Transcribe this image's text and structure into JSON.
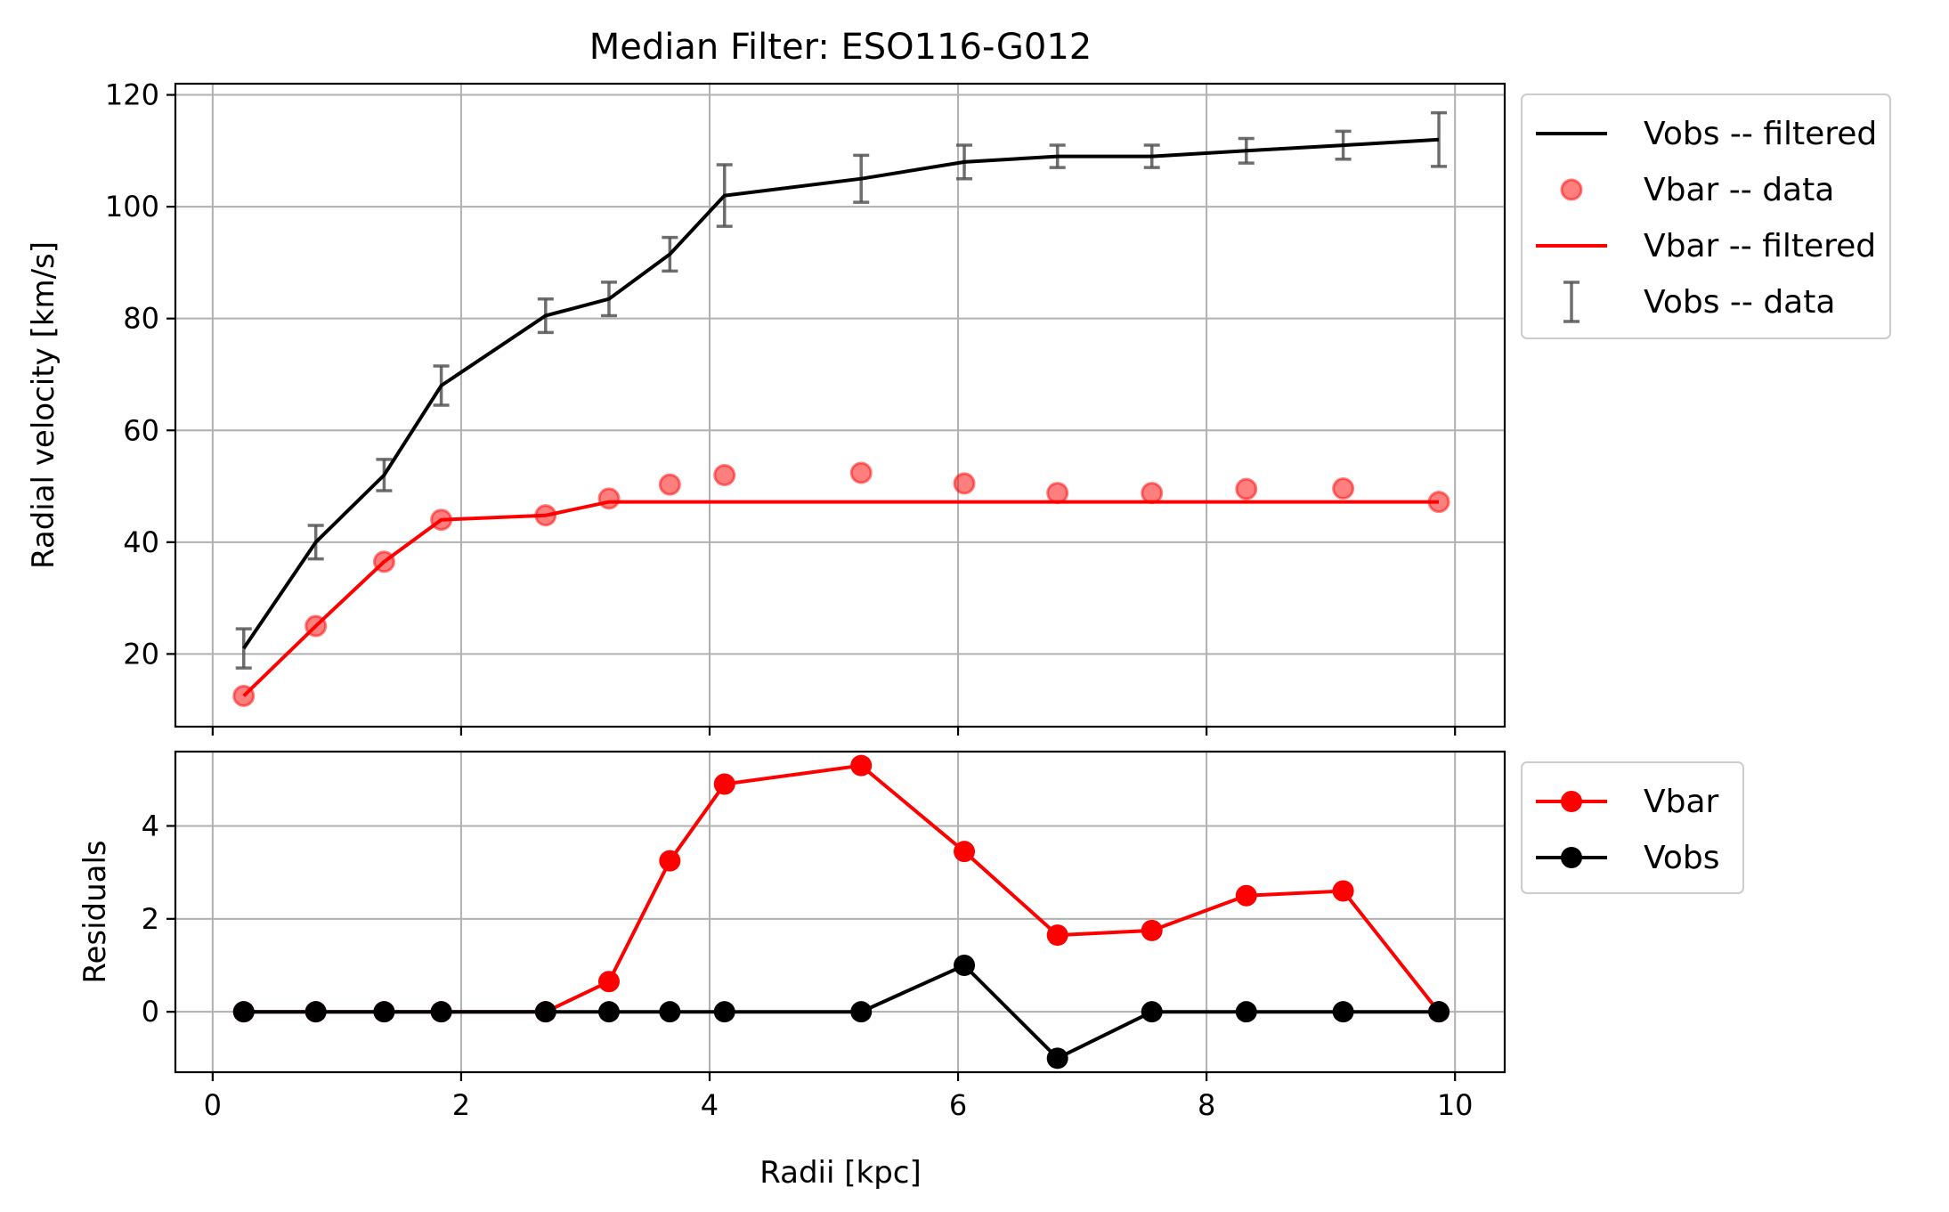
{
  "chart_data": {
    "type": "line",
    "title": "Median Filter: ESO116-G012",
    "xlabel": "Radii [kpc]",
    "xlim": [
      -0.3,
      10.4
    ],
    "xticks": [
      0,
      2,
      4,
      6,
      8,
      10
    ],
    "grid": true,
    "radii": [
      0.25,
      0.83,
      1.38,
      1.84,
      2.68,
      3.19,
      3.68,
      4.12,
      5.22,
      6.05,
      6.8,
      7.56,
      8.32,
      9.1,
      9.87
    ],
    "top_panel": {
      "ylabel": "Radial velocity [km/s]",
      "ylim": [
        7,
        122
      ],
      "yticks": [
        20,
        40,
        60,
        80,
        100,
        120
      ],
      "legend_position": "outside-upper-right",
      "series": [
        {
          "name": "Vobs -- filtered",
          "kind": "line",
          "color": "#000000",
          "values": [
            21,
            40,
            52,
            68,
            80.5,
            83.5,
            91.5,
            102,
            105,
            108,
            109,
            109,
            110,
            111,
            112
          ]
        },
        {
          "name": "Vbar -- data",
          "kind": "scatter",
          "color": "#ff0000",
          "values": [
            12.5,
            25,
            36.5,
            44,
            44.8,
            47.8,
            50.3,
            52,
            52.4,
            50.5,
            48.8,
            48.8,
            49.5,
            49.6,
            47.2
          ]
        },
        {
          "name": "Vbar -- filtered",
          "kind": "line",
          "color": "#ff0000",
          "values": [
            12.5,
            25,
            36.5,
            44,
            44.8,
            47.2,
            47.2,
            47.2,
            47.2,
            47.2,
            47.2,
            47.2,
            47.2,
            47.2,
            47.2
          ]
        },
        {
          "name": "Vobs -- data",
          "kind": "errorbar",
          "color": "#555555",
          "values": [
            21,
            40,
            52,
            68,
            80.5,
            83.5,
            91.5,
            102,
            105,
            108,
            109,
            109,
            110,
            111,
            112
          ],
          "errors": [
            3.5,
            3,
            2.8,
            3.5,
            3,
            3,
            3,
            5.5,
            4.2,
            3,
            2,
            2,
            2.2,
            2.5,
            4.8
          ]
        }
      ]
    },
    "bottom_panel": {
      "ylabel": "Residuals",
      "ylim": [
        -1.3,
        5.6
      ],
      "yticks": [
        0,
        2,
        4
      ],
      "legend_position": "outside-upper-right",
      "series": [
        {
          "name": "Vbar",
          "kind": "line+marker",
          "color": "#ff0000",
          "values": [
            0,
            0,
            0,
            0,
            0,
            0.65,
            3.25,
            4.9,
            5.3,
            3.45,
            1.65,
            1.75,
            2.5,
            2.6,
            0
          ]
        },
        {
          "name": "Vobs",
          "kind": "line+marker",
          "color": "#000000",
          "values": [
            0,
            0,
            0,
            0,
            0,
            0,
            0,
            0,
            0,
            1,
            -1,
            0,
            0,
            0,
            0
          ]
        }
      ]
    }
  }
}
